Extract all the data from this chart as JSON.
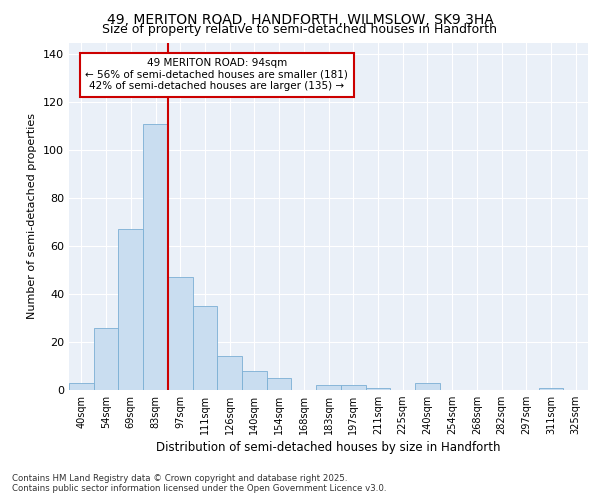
{
  "title1": "49, MERITON ROAD, HANDFORTH, WILMSLOW, SK9 3HA",
  "title2": "Size of property relative to semi-detached houses in Handforth",
  "xlabel": "Distribution of semi-detached houses by size in Handforth",
  "ylabel": "Number of semi-detached properties",
  "categories": [
    "40sqm",
    "54sqm",
    "69sqm",
    "83sqm",
    "97sqm",
    "111sqm",
    "126sqm",
    "140sqm",
    "154sqm",
    "168sqm",
    "183sqm",
    "197sqm",
    "211sqm",
    "225sqm",
    "240sqm",
    "254sqm",
    "268sqm",
    "282sqm",
    "297sqm",
    "311sqm",
    "325sqm"
  ],
  "values": [
    3,
    26,
    67,
    111,
    47,
    35,
    14,
    8,
    5,
    0,
    2,
    2,
    1,
    0,
    3,
    0,
    0,
    0,
    0,
    1,
    0
  ],
  "bar_color": "#c9ddf0",
  "bar_edge_color": "#7bafd4",
  "vline_after_index": 3,
  "vline_color": "#cc0000",
  "annotation_line1": "49 MERITON ROAD: 94sqm",
  "annotation_line2": "← 56% of semi-detached houses are smaller (181)",
  "annotation_line3": "42% of semi-detached houses are larger (135) →",
  "annotation_box_color": "#cc0000",
  "footer1": "Contains HM Land Registry data © Crown copyright and database right 2025.",
  "footer2": "Contains public sector information licensed under the Open Government Licence v3.0.",
  "bg_color": "#eaf0f8",
  "ylim": [
    0,
    145
  ],
  "yticks": [
    0,
    20,
    40,
    60,
    80,
    100,
    120,
    140
  ],
  "title1_fontsize": 10,
  "title2_fontsize": 9
}
